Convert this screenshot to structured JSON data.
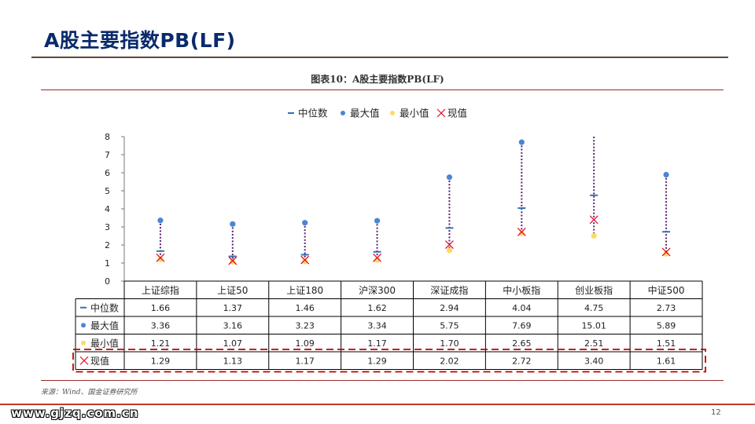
{
  "slide": {
    "title": "A股主要指数PB(LF)",
    "figure_caption": "图表10：A股主要指数PB(LF)",
    "source_note": "来源：Wind、国金证券研究所",
    "footer_url": "www.gjzq.com.cn",
    "page_number": "12"
  },
  "colors": {
    "title": "#0a2a6b",
    "median": "#2e75b6",
    "max": "#4a86d6",
    "min": "#ffd966",
    "current": "#e0102a",
    "range_line": "#5b1f6e",
    "highlight_box": "#c00000"
  },
  "chart_data": {
    "type": "table",
    "title": "",
    "xlabel": "",
    "ylabel": "",
    "ylim": [
      0,
      8
    ],
    "yticks": [
      0,
      1,
      2,
      3,
      4,
      5,
      6,
      7,
      8
    ],
    "legend_position": "top",
    "categories": [
      "上证综指",
      "上证50",
      "上证180",
      "沪深300",
      "深证成指",
      "中小板指",
      "创业板指",
      "中证500"
    ],
    "series": [
      {
        "name": "中位数",
        "marker": "dash",
        "values": [
          1.66,
          1.37,
          1.46,
          1.62,
          2.94,
          4.04,
          4.75,
          2.73
        ]
      },
      {
        "name": "最大值",
        "marker": "dot",
        "values": [
          3.36,
          3.16,
          3.23,
          3.34,
          5.75,
          7.69,
          15.01,
          5.89
        ]
      },
      {
        "name": "最小值",
        "marker": "dot",
        "values": [
          1.21,
          1.07,
          1.09,
          1.17,
          1.7,
          2.65,
          2.51,
          1.51
        ]
      },
      {
        "name": "现值",
        "marker": "x",
        "values": [
          1.29,
          1.13,
          1.17,
          1.29,
          2.02,
          2.72,
          3.4,
          1.61
        ]
      }
    ],
    "table_values": [
      [
        "1.66",
        "1.37",
        "1.46",
        "1.62",
        "2.94",
        "4.04",
        "4.75",
        "2.73"
      ],
      [
        "3.36",
        "3.16",
        "3.23",
        "3.34",
        "5.75",
        "7.69",
        "15.01",
        "5.89"
      ],
      [
        "1.21",
        "1.07",
        "1.09",
        "1.17",
        "1.70",
        "2.65",
        "2.51",
        "1.51"
      ],
      [
        "1.29",
        "1.13",
        "1.17",
        "1.29",
        "2.02",
        "2.72",
        "3.40",
        "1.61"
      ]
    ],
    "highlighted_row": "现值"
  }
}
